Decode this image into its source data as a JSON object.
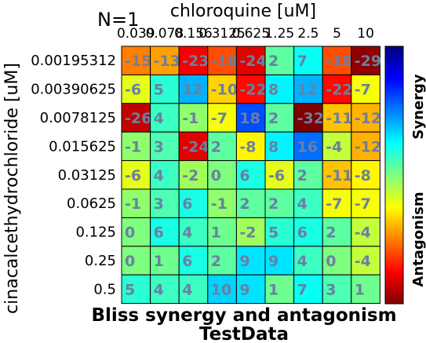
{
  "chart_data": {
    "type": "heatmap",
    "n_label": "N=1",
    "title": "Bliss synergy and antagonism",
    "subtitle": "TestData",
    "xlabel": "chloroquine [uM]",
    "ylabel": "cinacalcethydrochloride [uM]",
    "x_ticks": [
      "0.039",
      "0.078",
      "0.156",
      "0.3125",
      "0.625",
      "1.25",
      "2.5",
      "5",
      "10"
    ],
    "y_ticks": [
      "0.00195312",
      "0.00390625",
      "0.0078125",
      "0.015625",
      "0.03125",
      "0.0625",
      "0.125",
      "0.25",
      "0.5"
    ],
    "x_tick_text": [
      "0.039",
      "0.078",
      "0.156",
      "0.3125",
      "0.625",
      "1.25",
      "2.5",
      "5",
      "10"
    ],
    "colorbar": {
      "range": [
        -30,
        30
      ],
      "top_label": "Synergy",
      "bottom_label": "Antagonism",
      "colors": [
        "#00007f",
        "#0000ff",
        "#007fff",
        "#00ffff",
        "#7fff7f",
        "#ffff00",
        "#ff7f00",
        "#ff0000",
        "#7f0000"
      ]
    },
    "values": [
      [
        -15,
        -13,
        -23,
        -18,
        -24,
        2,
        7,
        -18,
        -29
      ],
      [
        -6,
        5,
        12,
        -10,
        -22,
        8,
        12,
        -22,
        -7
      ],
      [
        -26,
        4,
        -1,
        -7,
        18,
        2,
        -32,
        -11,
        -12
      ],
      [
        -1,
        3,
        -24,
        2,
        -8,
        8,
        16,
        -4,
        -12
      ],
      [
        -6,
        4,
        -2,
        0,
        6,
        -6,
        2,
        -11,
        -8
      ],
      [
        -1,
        3,
        6,
        -1,
        2,
        2,
        4,
        -7,
        -7
      ],
      [
        0,
        6,
        4,
        1,
        -2,
        5,
        6,
        2,
        -4
      ],
      [
        0,
        1,
        6,
        2,
        9,
        9,
        4,
        0,
        -4
      ],
      [
        5,
        4,
        4,
        10,
        9,
        1,
        7,
        3,
        1
      ]
    ]
  }
}
